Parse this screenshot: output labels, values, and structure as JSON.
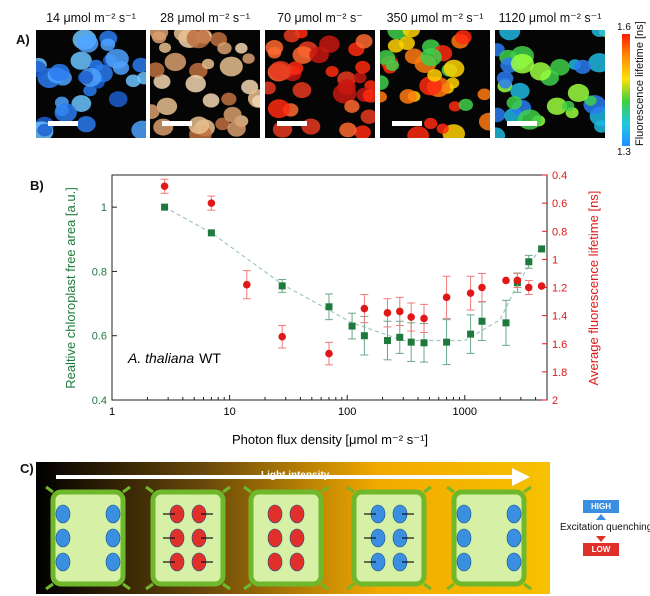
{
  "panel_labels": {
    "a": "A)",
    "b": "B)",
    "c": "C)"
  },
  "panel_a": {
    "images": [
      {
        "title": "14 μmol m⁻² s⁻¹",
        "palette": [
          "#2a7bf0",
          "#4fa3ff",
          "#1f5fd0",
          "#6cc4ff"
        ]
      },
      {
        "title": "28 μmol m⁻² s⁻¹",
        "palette": [
          "#d9a070",
          "#e8c090",
          "#c07040",
          "#f2d6b0"
        ]
      },
      {
        "title": "70 μmol m⁻² s⁻",
        "palette": [
          "#ff2a10",
          "#e83a20",
          "#ff6a30",
          "#c81810"
        ]
      },
      {
        "title": "350 μmol m⁻² s⁻¹",
        "palette": [
          "#ff2a10",
          "#ffd200",
          "#3fd04a",
          "#ff7a10"
        ]
      },
      {
        "title": "1120 μmol m⁻² s⁻¹",
        "palette": [
          "#1fb8e0",
          "#3fd04a",
          "#2a7bf0",
          "#9bff40"
        ]
      }
    ],
    "colorbar": {
      "max": "1.6",
      "min": "1.3",
      "label": "Fluorescence lifetime [ns]"
    }
  },
  "chart_data": {
    "type": "scatter",
    "xlabel": "Photon flux density [μmol m⁻² s⁻¹]",
    "ylabel_left": "Realtive chloroplast free area [a.u.]",
    "ylabel_right": "Average fluorescence lifetime [ns]",
    "x_scale": "log",
    "xlim": [
      1,
      5000
    ],
    "ylim_left": [
      0.4,
      1.1
    ],
    "ylim_right": [
      2.0,
      0.4
    ],
    "x_ticks": [
      "1",
      "10",
      "100",
      "1000"
    ],
    "y_left_ticks": [
      "0.4",
      "0.6",
      "0.8",
      "1"
    ],
    "y_right_ticks": [
      "0.4",
      "0.6",
      "0.8",
      "1",
      "1.2",
      "1.4",
      "1.6",
      "1.8",
      "2"
    ],
    "annotation": {
      "species": "A. thaliana",
      "genotype": "WT"
    },
    "series": [
      {
        "name": "chloroplast free area",
        "axis": "left",
        "color": "#1e7a3c",
        "marker": "square",
        "x": [
          2.8,
          7,
          28,
          70,
          110,
          140,
          220,
          280,
          350,
          450,
          700,
          1120,
          1400,
          2240,
          2800,
          3500,
          4500
        ],
        "y": [
          1.0,
          0.92,
          0.755,
          0.69,
          0.63,
          0.6,
          0.585,
          0.595,
          0.58,
          0.578,
          0.58,
          0.605,
          0.645,
          0.64,
          0.765,
          0.83,
          0.87
        ],
        "err": [
          0,
          0,
          0.02,
          0.04,
          0.04,
          0.06,
          0.06,
          0.05,
          0.06,
          0.06,
          0.07,
          0.06,
          0.06,
          0.07,
          0.03,
          0.02,
          0
        ]
      },
      {
        "name": "average fluorescence lifetime",
        "axis": "right",
        "color": "#e01818",
        "marker": "circle",
        "x": [
          2.8,
          7,
          14,
          28,
          70,
          140,
          220,
          280,
          350,
          450,
          700,
          1120,
          1400,
          2240,
          2800,
          3500,
          4500
        ],
        "y": [
          0.48,
          0.6,
          1.18,
          1.55,
          1.67,
          1.35,
          1.38,
          1.37,
          1.41,
          1.42,
          1.27,
          1.24,
          1.2,
          1.15,
          1.15,
          1.2,
          1.19
        ],
        "err": [
          0.05,
          0.05,
          0.1,
          0.08,
          0.08,
          0.1,
          0.1,
          0.1,
          0.1,
          0.1,
          0.15,
          0.12,
          0.1,
          0,
          0.05,
          0.05,
          0
        ]
      }
    ],
    "fit_line_left": {
      "x": [
        2.8,
        7,
        28,
        70,
        110,
        300,
        1000,
        2000,
        2800,
        4500
      ],
      "y": [
        1.0,
        0.92,
        0.76,
        0.68,
        0.64,
        0.585,
        0.585,
        0.65,
        0.76,
        0.88
      ]
    }
  },
  "panel_c": {
    "arrow_label": "Light intensity",
    "gradient": [
      "#000000",
      "#6b4a0a",
      "#f2a900",
      "#f7c100"
    ],
    "cells": [
      {
        "chloroplasts": "side",
        "color": "#3b8fe0",
        "arrows": "none"
      },
      {
        "chloroplasts": "center",
        "color": "#e0302a",
        "arrows": "in"
      },
      {
        "chloroplasts": "center",
        "color": "#e0302a",
        "arrows": "none"
      },
      {
        "chloroplasts": "center",
        "color": "#3b8fe0",
        "arrows": "out"
      },
      {
        "chloroplasts": "side",
        "color": "#3b8fe0",
        "arrows": "none"
      }
    ],
    "legend": {
      "high": "HIGH",
      "label": "Excitation quenching",
      "low": "LOW",
      "high_color": "#3b8fe0",
      "low_color": "#e0302a"
    }
  }
}
